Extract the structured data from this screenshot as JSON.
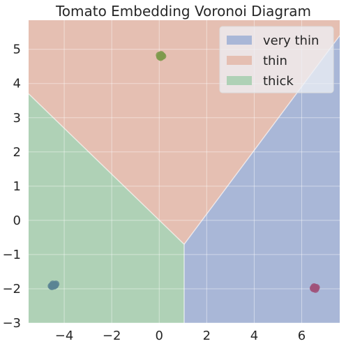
{
  "chart_data": {
    "type": "scatter",
    "title": "Tomato Embedding Voronoi Diagram",
    "xlabel": "",
    "ylabel": "",
    "xlim": [
      -5.5,
      7.6
    ],
    "ylim": [
      -3.0,
      5.85
    ],
    "xticks": [
      -4,
      -2,
      0,
      2,
      4,
      6
    ],
    "xtick_labels": [
      "−4",
      "−2",
      "0",
      "2",
      "4",
      "6"
    ],
    "yticks": [
      -3,
      -2,
      -1,
      0,
      1,
      2,
      3,
      4,
      5
    ],
    "ytick_labels": [
      "−3",
      "−2",
      "−1",
      "0",
      "1",
      "2",
      "3",
      "4",
      "5"
    ],
    "grid": true,
    "legend_position": "top-right",
    "regions": [
      {
        "name": "very thin",
        "color": "#a9b7d7",
        "polygon": [
          [
            1.05,
            -0.7
          ],
          [
            7.6,
            5.4
          ],
          [
            7.6,
            -3.0
          ],
          [
            1.05,
            -3.0
          ]
        ]
      },
      {
        "name": "thin",
        "color": "#e5bfb2",
        "polygon": [
          [
            -5.5,
            5.85
          ],
          [
            7.6,
            5.85
          ],
          [
            7.6,
            5.4
          ],
          [
            1.05,
            -0.7
          ],
          [
            -5.5,
            3.7
          ]
        ]
      },
      {
        "name": "thick",
        "color": "#afd1b6",
        "polygon": [
          [
            -5.5,
            3.7
          ],
          [
            1.05,
            -0.7
          ],
          [
            1.05,
            -3.0
          ],
          [
            -5.5,
            -3.0
          ]
        ]
      }
    ],
    "series": [
      {
        "color": "#5a8494",
        "points": [
          [
            -4.55,
            -1.92
          ],
          [
            -4.5,
            -1.9
          ],
          [
            -4.45,
            -1.9
          ],
          [
            -4.4,
            -1.88
          ],
          [
            -4.35,
            -1.86
          ],
          [
            -4.48,
            -1.86
          ],
          [
            -4.52,
            -1.94
          ],
          [
            -4.42,
            -1.92
          ],
          [
            -4.38,
            -1.9
          ]
        ]
      },
      {
        "color": "#7e9a4c",
        "points": [
          [
            0.0,
            4.83
          ],
          [
            0.05,
            4.8
          ],
          [
            0.1,
            4.79
          ],
          [
            0.12,
            4.82
          ],
          [
            0.08,
            4.85
          ],
          [
            0.02,
            4.78
          ],
          [
            0.15,
            4.8
          ],
          [
            0.06,
            4.76
          ]
        ]
      },
      {
        "color": "#a0527a",
        "points": [
          [
            6.5,
            -2.0
          ],
          [
            6.55,
            -1.96
          ],
          [
            6.6,
            -1.98
          ],
          [
            6.52,
            -1.94
          ],
          [
            6.58,
            -2.02
          ],
          [
            6.62,
            -1.96
          ],
          [
            6.48,
            -1.98
          ]
        ]
      }
    ]
  }
}
